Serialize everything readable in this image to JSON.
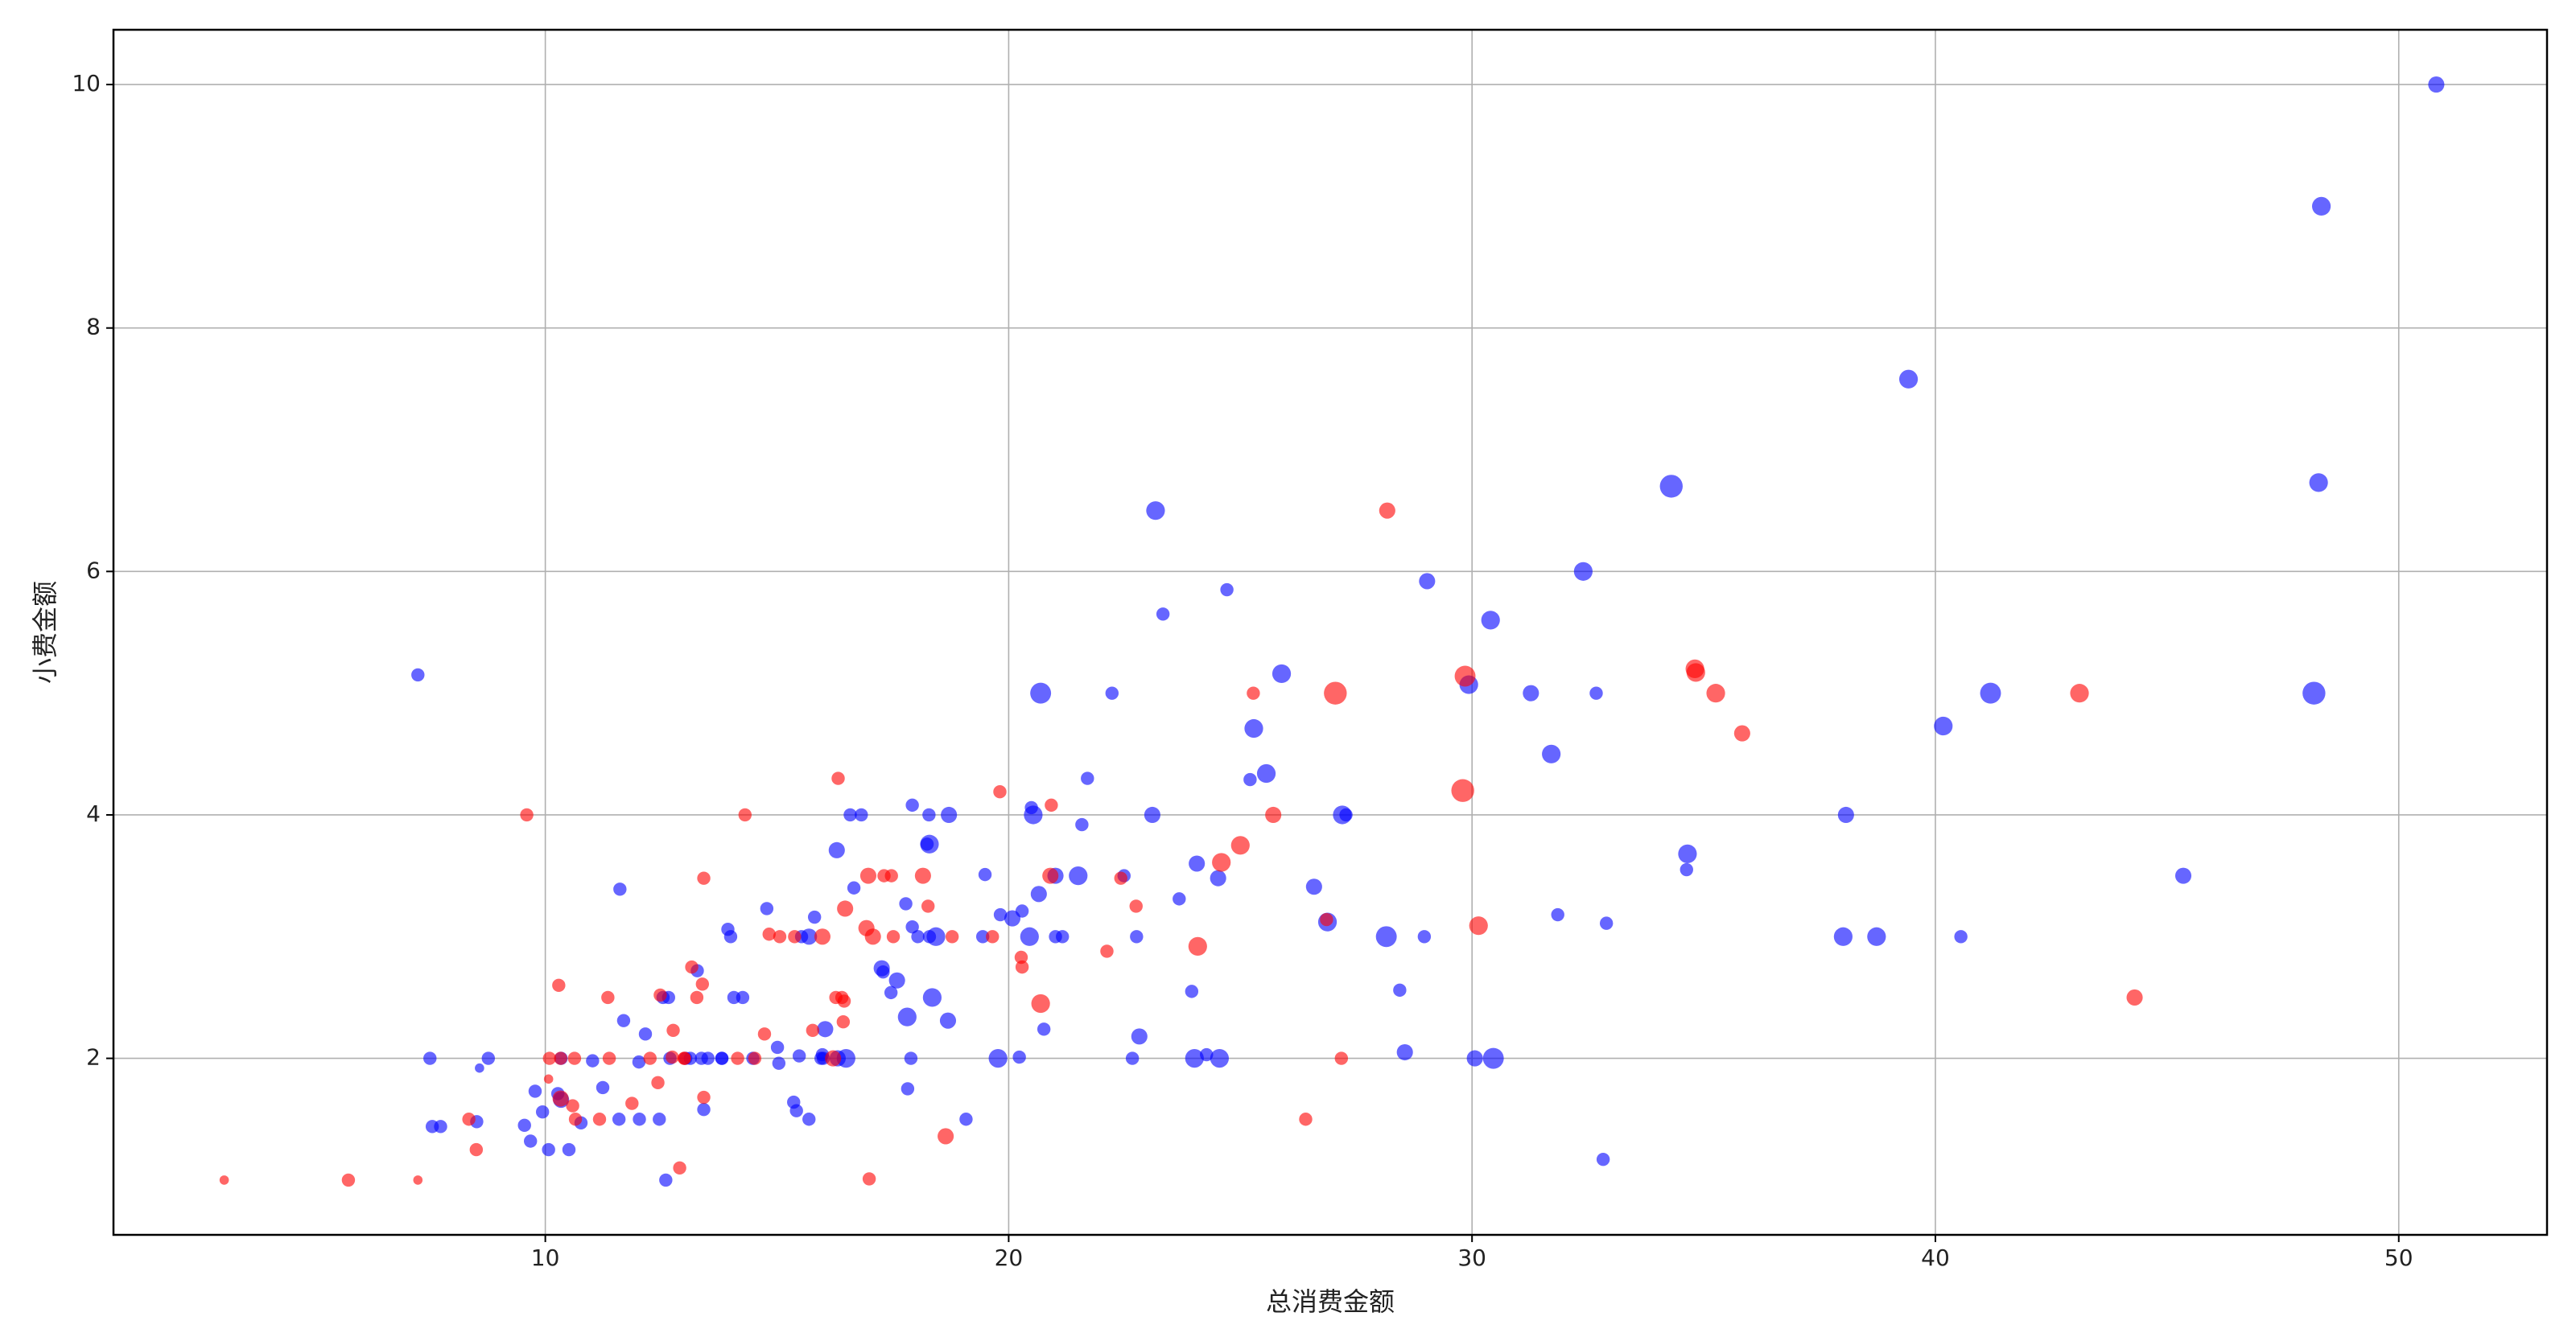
{
  "chart_data": {
    "type": "scatter",
    "xlabel": "总消费金额",
    "ylabel": "小费金额",
    "xlim": [
      0.68,
      53.2
    ],
    "ylim": [
      0.55,
      10.45
    ],
    "xticks": [
      10,
      20,
      30,
      40,
      50
    ],
    "yticks": [
      2,
      4,
      6,
      8,
      10
    ],
    "grid": true,
    "series": [
      {
        "color": "blue",
        "x": [
          10.34,
          21.01,
          23.68,
          25.29,
          8.77,
          26.88,
          15.04,
          14.78,
          10.27,
          15.42,
          18.43,
          21.58,
          16.29,
          20.65,
          17.92,
          39.42,
          19.82,
          17.81,
          13.37,
          12.69,
          21.7,
          9.55,
          18.35,
          17.78,
          24.06,
          16.31,
          18.69,
          31.27,
          16.04,
          17.46,
          13.94,
          9.68,
          30.4,
          18.29,
          22.23,
          32.4,
          28.55,
          18.04,
          12.54,
          9.94,
          25.56,
          19.49,
          38.01,
          11.24,
          48.27,
          20.29,
          13.81,
          11.02,
          18.29,
          17.59,
          20.08,
          20.23,
          15.01,
          12.02,
          10.51,
          17.92,
          27.2,
          22.76,
          17.29,
          19.44,
          16.66,
          32.68,
          15.98,
          13.03,
          18.28,
          24.71,
          21.16,
          28.97,
          22.49,
          40.17,
          27.28,
          12.03,
          21.01,
          12.46,
          15.36,
          20.49,
          25.21,
          18.24,
          14.0,
          38.07,
          23.95,
          29.93,
          11.69,
          14.26,
          15.95,
          8.52,
          22.82,
          19.08,
          16.0,
          34.3,
          41.19,
          9.78,
          7.51,
          14.07,
          13.13,
          17.26,
          24.55,
          19.77,
          48.17,
          16.49,
          21.5,
          12.66,
          13.81,
          24.52,
          20.76,
          31.71,
          50.81,
          15.81,
          7.25,
          31.85,
          16.82,
          32.9,
          17.89,
          14.48,
          34.63,
          34.65,
          23.33,
          45.35,
          23.17,
          40.55,
          20.69,
          30.46,
          23.1,
          15.69,
          28.44,
          15.48,
          16.58,
          7.56,
          10.34,
          13.51,
          18.71,
          20.53,
          26.59,
          38.73,
          24.27,
          30.06,
          25.89,
          48.33,
          28.15,
          11.59,
          7.74,
          12.16,
          8.58,
          13.42,
          20.45,
          13.28,
          24.01,
          15.69,
          11.61,
          10.77,
          15.53,
          10.07,
          12.6,
          32.83,
          29.03,
          22.67,
          17.82
        ],
        "values": [
          1.66,
          3.5,
          3.31,
          4.71,
          2.0,
          3.12,
          1.96,
          3.23,
          1.71,
          1.57,
          3.0,
          3.92,
          3.71,
          3.35,
          4.08,
          7.58,
          3.18,
          2.34,
          2.0,
          2.0,
          4.3,
          1.45,
          2.5,
          3.27,
          3.6,
          2.0,
          2.31,
          5.0,
          2.24,
          2.54,
          3.06,
          1.32,
          5.6,
          3.0,
          5.0,
          6.0,
          2.05,
          3.0,
          2.5,
          1.56,
          4.34,
          3.51,
          3.0,
          1.76,
          6.73,
          3.21,
          2.0,
          1.98,
          3.76,
          2.64,
          3.15,
          2.01,
          2.09,
          1.97,
          1.25,
          3.08,
          4.0,
          3.0,
          2.71,
          3.0,
          3.4,
          5.0,
          2.03,
          2.0,
          4.0,
          5.85,
          3.0,
          3.0,
          3.5,
          4.73,
          4.0,
          1.5,
          3.0,
          1.5,
          1.64,
          4.06,
          4.29,
          3.76,
          3.0,
          4.0,
          2.55,
          5.07,
          2.31,
          2.5,
          2.0,
          1.48,
          2.18,
          1.5,
          2.0,
          6.7,
          5.0,
          1.73,
          2.0,
          2.5,
          2.0,
          2.74,
          2.0,
          2.0,
          5.0,
          2.0,
          3.5,
          2.5,
          2.0,
          3.48,
          2.24,
          4.5,
          10.0,
          3.16,
          5.15,
          3.18,
          4.0,
          3.11,
          2.0,
          2.0,
          3.55,
          3.68,
          5.65,
          3.5,
          6.5,
          3.0,
          5.0,
          2.0,
          4.0,
          1.5,
          2.56,
          2.02,
          4.0,
          1.44,
          2.0,
          2.0,
          4.0,
          4.0,
          3.41,
          3.0,
          2.03,
          2.0,
          5.16,
          9.0,
          3.0,
          1.5,
          1.44,
          2.2,
          1.92,
          1.58,
          3.0,
          2.72,
          2.0,
          3.0,
          3.39,
          1.47,
          3.0,
          1.25,
          1.0,
          1.17,
          5.92,
          2.0,
          1.75
        ],
        "sizes": [
          3,
          3,
          2,
          4,
          2,
          4,
          2,
          2,
          2,
          2,
          4,
          2,
          3,
          3,
          2,
          4,
          2,
          4,
          2,
          2,
          2,
          2,
          4,
          2,
          3,
          3,
          3,
          3,
          3,
          2,
          2,
          2,
          4,
          2,
          2,
          4,
          3,
          2,
          2,
          2,
          4,
          2,
          4,
          2,
          4,
          2,
          2,
          2,
          4,
          3,
          3,
          2,
          2,
          2,
          2,
          2,
          4,
          2,
          2,
          2,
          2,
          2,
          2,
          2,
          2,
          2,
          2,
          2,
          2,
          4,
          2,
          2,
          2,
          2,
          2,
          2,
          2,
          2,
          2,
          3,
          2,
          4,
          2,
          2,
          2,
          2,
          3,
          2,
          2,
          6,
          5,
          2,
          2,
          2,
          2,
          3,
          4,
          4,
          6,
          4,
          4,
          2,
          2,
          3,
          2,
          4,
          3,
          2,
          2,
          2,
          2,
          2,
          2,
          2,
          2,
          4,
          2,
          3,
          4,
          2,
          5,
          5,
          3,
          2,
          2,
          2,
          2,
          2,
          2,
          2,
          3,
          4,
          3,
          4,
          2,
          3,
          4,
          4,
          5,
          2,
          2,
          2,
          1,
          2,
          4,
          2,
          4,
          3,
          2,
          2,
          2,
          2,
          2,
          2,
          3,
          2,
          2
        ]
      },
      {
        "color": "red",
        "x": [
          16.99,
          24.59,
          35.26,
          14.83,
          10.33,
          16.97,
          20.29,
          15.77,
          19.65,
          15.06,
          20.69,
          16.93,
          10.29,
          34.81,
          26.41,
          16.45,
          3.07,
          17.07,
          26.86,
          25.28,
          14.73,
          10.07,
          34.83,
          5.75,
          16.32,
          22.75,
          11.35,
          15.38,
          44.3,
          22.42,
          20.92,
          14.31,
          7.25,
          25.71,
          17.31,
          10.65,
          12.43,
          24.08,
          13.42,
          12.48,
          29.8,
          14.52,
          11.38,
          20.27,
          11.17,
          12.26,
          18.26,
          8.51,
          10.33,
          14.15,
          13.16,
          17.47,
          27.05,
          16.43,
          8.35,
          18.64,
          11.87,
          29.85,
          25.0,
          13.39,
          16.21,
          17.51,
          10.59,
          10.63,
          9.6,
          20.9,
          18.15,
          19.81,
          43.11,
          13.0,
          12.74,
          13.0,
          16.4,
          16.47,
          12.76,
          13.27,
          28.17,
          12.9,
          30.14,
          13.42,
          15.98,
          16.27,
          10.09,
          22.12,
          35.83,
          27.18,
          18.78
        ],
        "values": [
          1.01,
          3.61,
          5.0,
          3.02,
          1.67,
          3.5,
          2.75,
          2.23,
          3.0,
          3.0,
          2.45,
          3.07,
          2.6,
          5.2,
          1.5,
          2.47,
          1.0,
          3.0,
          3.14,
          5.0,
          2.2,
          1.83,
          5.17,
          1.0,
          4.3,
          3.25,
          2.5,
          3.0,
          2.5,
          3.48,
          4.08,
          4.0,
          1.0,
          4.0,
          3.5,
          1.5,
          1.8,
          2.92,
          1.68,
          2.52,
          4.2,
          2.0,
          2.0,
          2.83,
          1.5,
          2.0,
          3.25,
          1.25,
          2.0,
          2.0,
          2.75,
          3.5,
          5.0,
          2.3,
          1.5,
          1.36,
          1.63,
          5.14,
          3.75,
          2.61,
          2.0,
          3.0,
          1.61,
          2.0,
          4.0,
          3.5,
          3.5,
          4.19,
          5.0,
          2.0,
          2.01,
          2.0,
          2.5,
          3.23,
          2.23,
          2.5,
          6.5,
          1.1,
          3.09,
          3.48,
          3.0,
          2.5,
          2.0,
          2.88,
          4.67,
          2.0,
          3.0
        ],
        "sizes": [
          2,
          4,
          4,
          2,
          3,
          3,
          2,
          2,
          2,
          2,
          4,
          3,
          2,
          4,
          2,
          2,
          1,
          3,
          2,
          2,
          2,
          1,
          4,
          2,
          2,
          2,
          2,
          2,
          3,
          2,
          2,
          2,
          1,
          3,
          2,
          2,
          2,
          4,
          2,
          2,
          6,
          2,
          2,
          2,
          2,
          2,
          2,
          2,
          2,
          2,
          2,
          2,
          6,
          2,
          2,
          3,
          2,
          5,
          4,
          2,
          3,
          2,
          2,
          2,
          2,
          3,
          3,
          2,
          4,
          2,
          2,
          2,
          2,
          3,
          2,
          2,
          3,
          2,
          4,
          2,
          3,
          2,
          2,
          2,
          3,
          2,
          2
        ]
      }
    ]
  }
}
